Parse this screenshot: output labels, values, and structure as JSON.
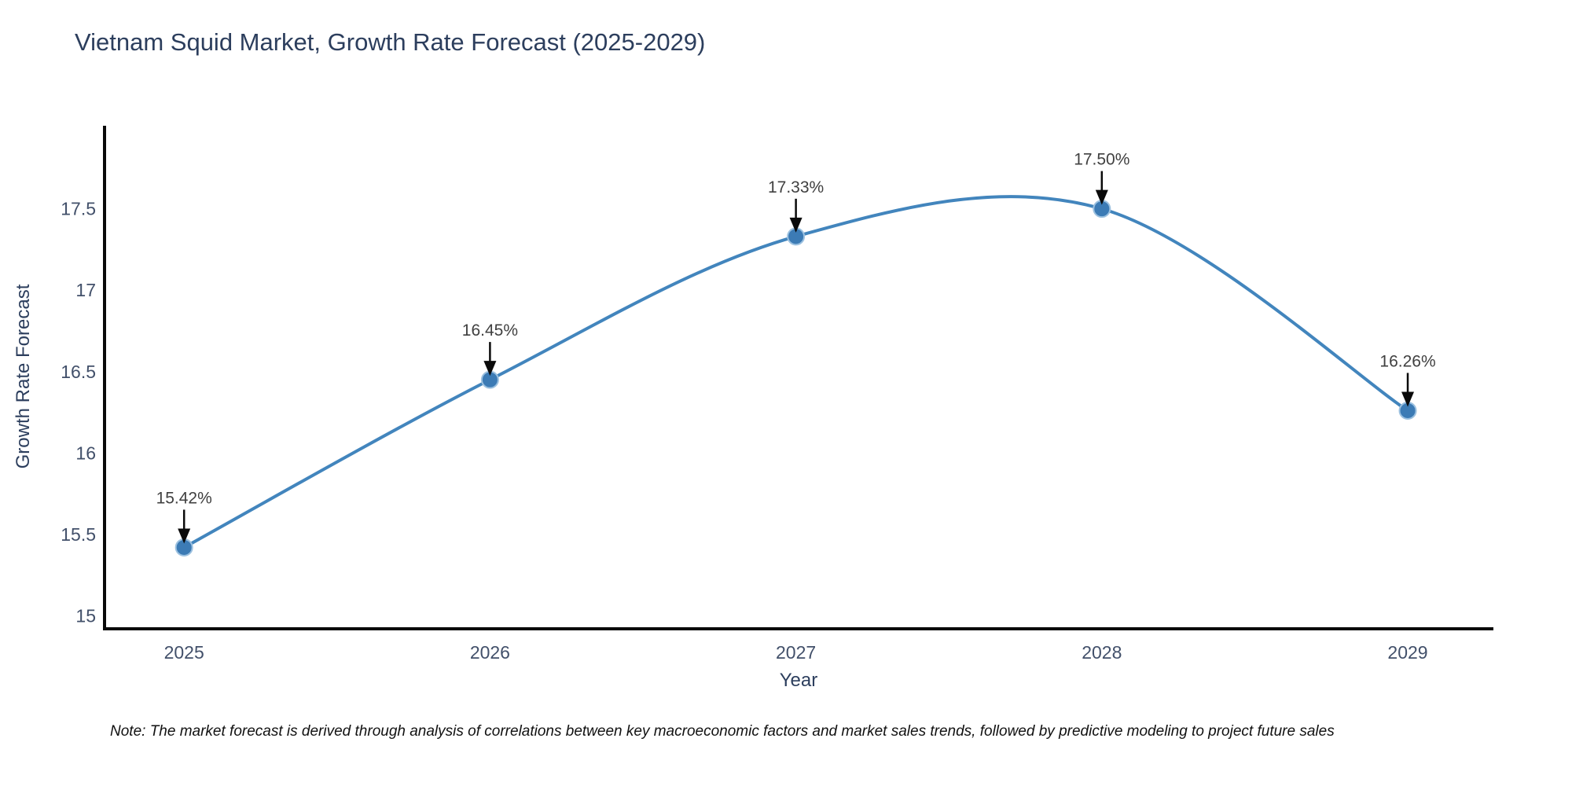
{
  "header": {
    "title": "Vietnam Squid Market, Growth Rate Forecast (2025-2029)"
  },
  "footnote": "Note: The market forecast is derived through analysis of correlations between key macroeconomic factors and market sales trends, followed by predictive modeling to project future sales",
  "chart_data": {
    "type": "line",
    "title": "Vietnam Squid Market, Growth Rate Forecast (2025-2029)",
    "xlabel": "Year",
    "ylabel": "Growth Rate Forecast",
    "x": [
      2025,
      2026,
      2027,
      2028,
      2029
    ],
    "y": [
      15.42,
      16.45,
      17.33,
      17.5,
      16.26
    ],
    "point_labels": [
      "15.42%",
      "16.45%",
      "17.33%",
      "17.50%",
      "16.26%"
    ],
    "x_tick_labels": [
      "2025",
      "2026",
      "2027",
      "2028",
      "2029"
    ],
    "y_tick_values": [
      15,
      15.5,
      16,
      16.5,
      17,
      17.5
    ],
    "y_tick_labels": [
      "15",
      "15.5",
      "16",
      "16.5",
      "17",
      "17.5"
    ],
    "xlim": [
      2024.74,
      2029.28
    ],
    "ylim": [
      14.92,
      18.01
    ],
    "grid": false,
    "legend": "none",
    "line_shape": "spline",
    "annotation_style": "label-with-down-arrow",
    "colors": {
      "line": "#4285bd",
      "marker_fill": "#3c7bb5",
      "marker_edge": "#9cc1e0",
      "axis_line": "#0a0a0a",
      "title_text": "#2c3e5d",
      "axis_title_text": "#2c3e5d",
      "tick_text": "#42506a",
      "annotation_text": "#404040",
      "arrow": "#0a0a0a",
      "background": "#ffffff"
    }
  }
}
